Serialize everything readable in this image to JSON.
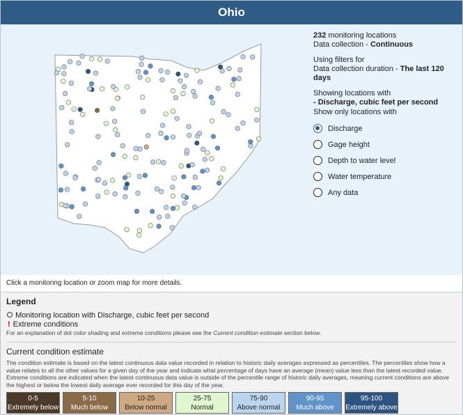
{
  "header": {
    "title": "Ohio"
  },
  "info": {
    "count": "232",
    "count_text": " monitoring locations",
    "collection_label": "Data collection - ",
    "collection_value": "Continuous",
    "filters_line": "Using filters for",
    "duration_label": "Data collection duration - ",
    "duration_value": "The last 120 days",
    "showing_line": "Showing locations with",
    "showing_value": "- Discharge, cubic feet per second"
  },
  "filter": {
    "title": "Show only locations with",
    "options": [
      {
        "label": "Discharge",
        "checked": true
      },
      {
        "label": "Gage height",
        "checked": false
      },
      {
        "label": "Depth to water level",
        "checked": false
      },
      {
        "label": "Water temperature",
        "checked": false
      },
      {
        "label": "Any data",
        "checked": false
      }
    ]
  },
  "caption": "Click a monitoring location or zoom map for more details.",
  "legend": {
    "title": "Legend",
    "items": [
      "Monitoring location with Discharge, cubic feet per second",
      "Extreme conditions"
    ],
    "extreme_symbol": "!",
    "note_before": "For an explanation of dot color shading and extreme conditions please see the ",
    "note_link": "Current condition estimate",
    "note_after": " section below."
  },
  "condition": {
    "title": "Current condition estimate",
    "text": "The condition estimate is based on the latest continuous data value recorded in relation to historic daily averages expressed as percentiles. The percentiles show how a value relates to all the other values for a given day of the year and indicate what percentage of days have an average (mean) value less than the latest recorded value. Extreme conditions are indicated when the latest continuous data value is outside of the percentile range of historic daily averages, meaning current conditions are above the highest or below the lowest daily average ever recorded for this day of the year.",
    "classes": [
      {
        "range": "0-5",
        "label": "Extremely below",
        "color": "#4a3a27",
        "text_color": "#ffffff"
      },
      {
        "range": "5-10",
        "label": "Much below",
        "color": "#8b6a48",
        "text_color": "#ffffff"
      },
      {
        "range": "10-25",
        "label": "Below normal",
        "color": "#cfa983",
        "text_color": "#222222"
      },
      {
        "range": "25-75",
        "label": "Normal",
        "color": "#dff6cf",
        "text_color": "#222222"
      },
      {
        "range": "75-90",
        "label": "Above normal",
        "color": "#bcd5ee",
        "text_color": "#222222"
      },
      {
        "range": "90-95",
        "label": "Much above",
        "color": "#5f93c9",
        "text_color": "#ffffff"
      },
      {
        "range": "95-100",
        "label": "Extremely above",
        "color": "#2d5480",
        "text_color": "#ffffff"
      }
    ]
  }
}
